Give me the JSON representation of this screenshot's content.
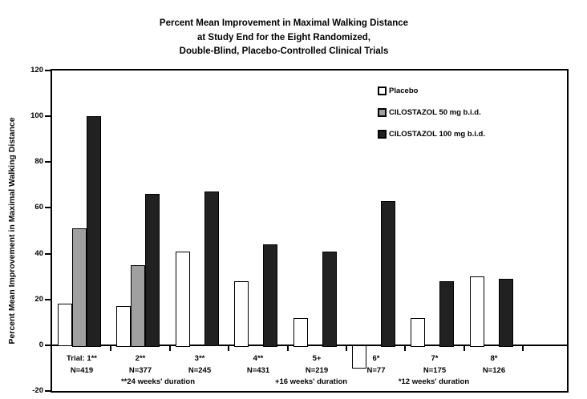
{
  "title": {
    "line1": "Percent Mean Improvement in Maximal Walking Distance",
    "line2": "at Study End for the Eight Randomized,",
    "line3": "Double-Blind, Placebo-Controlled Clinical Trials"
  },
  "colors": {
    "background": "#ffffff",
    "axis": "#000000",
    "text": "#000000"
  },
  "chart_data": {
    "type": "bar",
    "title": "Percent Mean Improvement in Maximal Walking Distance at Study End for the Eight Randomized, Double-Blind, Placebo-Controlled Clinical Trials",
    "xlabel": "",
    "ylabel": "Percent Mean Improvement in Maximal Walking Distance",
    "ylim": [
      -20,
      120
    ],
    "yticks": [
      120,
      100,
      80,
      60,
      40,
      20,
      0,
      -20
    ],
    "grid": false,
    "legend_position": "upper-right-inside",
    "categories": [
      "Trial: 1**",
      "2**",
      "3**",
      "4**",
      "5+",
      "6*",
      "7*",
      "8*"
    ],
    "sample_sizes": [
      "N=419",
      "N=377",
      "N=245",
      "N=431",
      "N=219",
      "N=77",
      "N=175",
      "N=126"
    ],
    "series": [
      {
        "name": "Placebo",
        "color": "#ffffff",
        "values": [
          18,
          17,
          41,
          28,
          12,
          -10,
          12,
          30
        ]
      },
      {
        "name": "CILOSTAZOL 50 mg b.i.d.",
        "color": "#a0a0a0",
        "values": [
          51,
          35,
          null,
          null,
          null,
          null,
          null,
          null
        ]
      },
      {
        "name": "CILOSTAZOL 100 mg b.i.d.",
        "color": "#212121",
        "values": [
          100,
          66,
          67,
          44,
          41,
          63,
          28,
          29
        ]
      }
    ],
    "footnotes": [
      "**24 weeks' duration",
      "+16 weeks' duration",
      "*12 weeks' duration"
    ]
  }
}
